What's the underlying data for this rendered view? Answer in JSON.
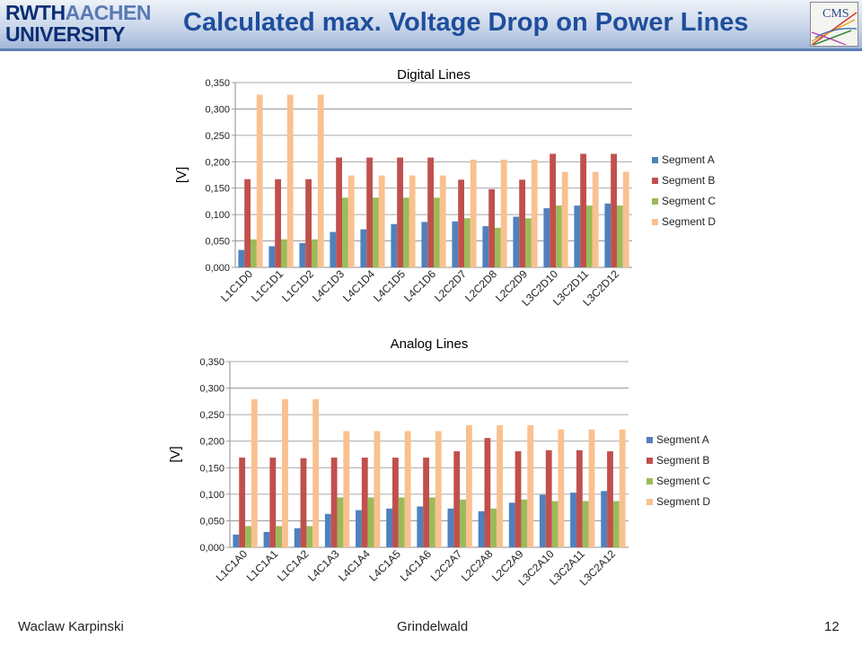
{
  "header": {
    "logo_line1_bold": "RWTH",
    "logo_line1_light": "AACHEN",
    "logo_line2": "UNIVERSITY",
    "title": "Calculated max. Voltage Drop on Power Lines",
    "cms_logo_text": "CMS"
  },
  "footer": {
    "author": "Waclaw Karpinski",
    "venue": "Grindelwald",
    "page": "12"
  },
  "colors": {
    "segment_a": "#4f81bd",
    "segment_b": "#c0504d",
    "segment_c": "#9bbb59",
    "segment_d": "#fac090",
    "title_blue": "#1f4e9c"
  },
  "chart_data": [
    {
      "type": "bar",
      "title": "Digital Lines",
      "ylabel": "[V]",
      "xlabel": "",
      "ylim": [
        0,
        0.35
      ],
      "yticks": [
        "0,000",
        "0,050",
        "0,100",
        "0,150",
        "0,200",
        "0,250",
        "0,300",
        "0,350"
      ],
      "grid": true,
      "legend_position": "right",
      "categories": [
        "L1C1D0",
        "L1C1D1",
        "L1C1D2",
        "L4C1D3",
        "L4C1D4",
        "L4C1D5",
        "L4C1D6",
        "L2C2D7",
        "L2C2D8",
        "L2C2D9",
        "L3C2D10",
        "L3C2D11",
        "L3C2D12"
      ],
      "series": [
        {
          "name": "Segment A",
          "values": [
            0.033,
            0.04,
            0.046,
            0.067,
            0.072,
            0.082,
            0.086,
            0.087,
            0.078,
            0.096,
            0.112,
            0.117,
            0.121
          ]
        },
        {
          "name": "Segment B",
          "values": [
            0.167,
            0.167,
            0.167,
            0.208,
            0.208,
            0.208,
            0.208,
            0.166,
            0.148,
            0.166,
            0.215,
            0.215,
            0.215
          ]
        },
        {
          "name": "Segment C",
          "values": [
            0.053,
            0.053,
            0.053,
            0.132,
            0.132,
            0.132,
            0.132,
            0.093,
            0.075,
            0.093,
            0.117,
            0.117,
            0.117
          ]
        },
        {
          "name": "Segment D",
          "values": [
            0.327,
            0.327,
            0.327,
            0.174,
            0.174,
            0.174,
            0.174,
            0.204,
            0.204,
            0.204,
            0.181,
            0.181,
            0.181
          ]
        }
      ]
    },
    {
      "type": "bar",
      "title": "Analog Lines",
      "ylabel": "[V]",
      "xlabel": "",
      "ylim": [
        0,
        0.35
      ],
      "yticks": [
        "0,000",
        "0,050",
        "0,100",
        "0,150",
        "0,200",
        "0,250",
        "0,300",
        "0,350"
      ],
      "grid": true,
      "legend_position": "right",
      "categories": [
        "L1C1A0",
        "L1C1A1",
        "L1C1A2",
        "L4C1A3",
        "L4C1A4",
        "L4C1A5",
        "L4C1A6",
        "L2C2A7",
        "L2C2A8",
        "L2C2A9",
        "L3C2A10",
        "L3C2A11",
        "L3C2A12"
      ],
      "series": [
        {
          "name": "Segment A",
          "values": [
            0.024,
            0.029,
            0.036,
            0.063,
            0.07,
            0.073,
            0.077,
            0.073,
            0.068,
            0.084,
            0.099,
            0.103,
            0.106
          ]
        },
        {
          "name": "Segment B",
          "values": [
            0.169,
            0.169,
            0.168,
            0.169,
            0.169,
            0.169,
            0.169,
            0.181,
            0.206,
            0.181,
            0.183,
            0.183,
            0.181
          ]
        },
        {
          "name": "Segment C",
          "values": [
            0.04,
            0.04,
            0.04,
            0.094,
            0.094,
            0.094,
            0.094,
            0.09,
            0.073,
            0.09,
            0.087,
            0.087,
            0.087
          ]
        },
        {
          "name": "Segment D",
          "values": [
            0.279,
            0.279,
            0.279,
            0.219,
            0.219,
            0.219,
            0.219,
            0.23,
            0.23,
            0.23,
            0.222,
            0.222,
            0.222
          ]
        }
      ]
    }
  ]
}
